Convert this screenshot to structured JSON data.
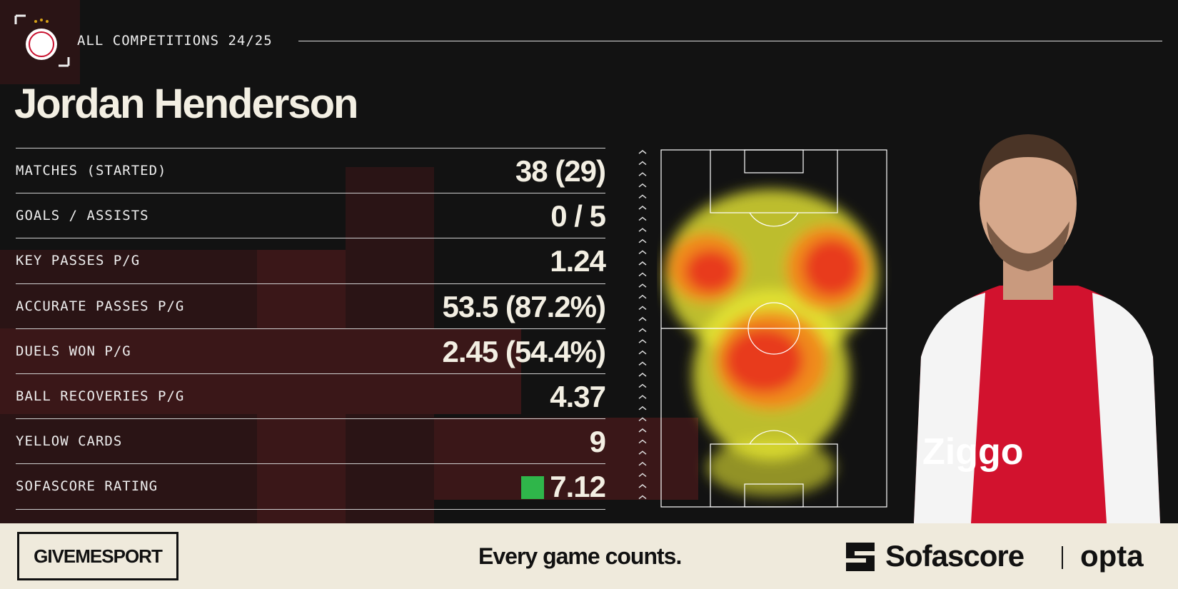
{
  "header": {
    "competition": "ALL COMPETITIONS 24/25",
    "player_name": "Jordan Henderson"
  },
  "stats": [
    {
      "label": "MATCHES (STARTED)",
      "value": "38 (29)"
    },
    {
      "label": "GOALS / ASSISTS",
      "value": "0 / 5"
    },
    {
      "label": "KEY PASSES P/G",
      "value": "1.24"
    },
    {
      "label": "ACCURATE PASSES P/G",
      "value": "53.5 (87.2%)"
    },
    {
      "label": "DUELS WON P/G",
      "value": "2.45 (54.4%)"
    },
    {
      "label": "BALL RECOVERIES P/G",
      "value": "4.37"
    },
    {
      "label": "YELLOW CARDS",
      "value": "9"
    },
    {
      "label": "SOFASCORE RATING",
      "value": "7.12"
    }
  ],
  "footer": {
    "publisher": "GIVEMESPORT",
    "tagline": "Every game counts.",
    "partner": "Sofascore",
    "data_provider": "opta"
  }
}
